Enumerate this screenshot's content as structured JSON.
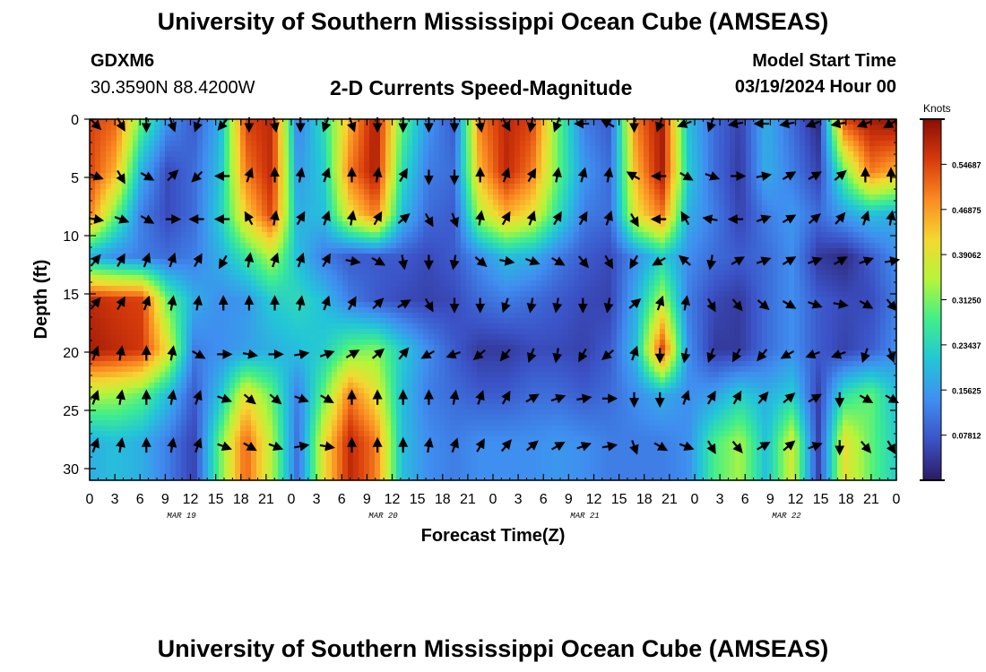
{
  "header": {
    "title": "University of Southern Mississippi Ocean Cube (AMSEAS)",
    "station": "GDXM6",
    "coords": "30.3590N  88.4200W",
    "plot_title": "2-D Currents Speed-Magnitude",
    "model_start_label": "Model Start Time",
    "model_start_value": "03/19/2024 Hour 00"
  },
  "footer": {
    "title": "University of Southern Mississippi Ocean Cube (AMSEAS)"
  },
  "colors": {
    "arrow": "#000000",
    "frame": "#000000",
    "colormap": [
      "#2b1b63",
      "#3b52c6",
      "#3f8ef0",
      "#23c5d8",
      "#3fee8c",
      "#b5f53a",
      "#f4d832",
      "#fb8a22",
      "#d63a0b",
      "#8a0e06"
    ]
  },
  "chart_data": {
    "type": "heatmap",
    "title": "2-D Currents Speed-Magnitude",
    "xlabel": "Forecast Time(Z)",
    "ylabel": "Depth (ft)",
    "units": "Knots",
    "x_hours_range": [
      0,
      96
    ],
    "x_ticks": [
      "0",
      "3",
      "6",
      "9",
      "12",
      "15",
      "18",
      "21",
      "0",
      "3",
      "6",
      "9",
      "12",
      "15",
      "18",
      "21",
      "0",
      "3",
      "6",
      "9",
      "12",
      "15",
      "18",
      "21",
      "0",
      "3",
      "6",
      "9",
      "12",
      "15",
      "18",
      "21",
      "0"
    ],
    "date_labels": [
      "MAR 19",
      "MAR 20",
      "MAR 21",
      "MAR 22"
    ],
    "ylim": [
      0,
      31
    ],
    "y_ticks": [
      "0",
      "5",
      "10",
      "15",
      "20",
      "25",
      "30"
    ],
    "colorbar_ticks": [
      "0.54687",
      "0.46875",
      "0.39062",
      "0.31250",
      "0.23437",
      "0.15625",
      "0.07812"
    ],
    "speed_range": [
      0,
      0.625
    ],
    "depths_ft": [
      0,
      4.5,
      8.2,
      11.8,
      15.5,
      19.8,
      23.6,
      27.7
    ],
    "speed_grid": [
      [
        0.55,
        0.52,
        0.3,
        0.15,
        0.08,
        0.18,
        0.55,
        0.58,
        0.12,
        0.25,
        0.45,
        0.6,
        0.3,
        0.15,
        0.08,
        0.5,
        0.58,
        0.55,
        0.3,
        0.12,
        0.08,
        0.5,
        0.6,
        0.2,
        0.1,
        0.05,
        0.18,
        0.1,
        0.02,
        0.55,
        0.6,
        0.62
      ],
      [
        0.55,
        0.45,
        0.18,
        0.06,
        0.1,
        0.2,
        0.5,
        0.58,
        0.15,
        0.22,
        0.5,
        0.6,
        0.25,
        0.12,
        0.1,
        0.45,
        0.58,
        0.5,
        0.3,
        0.15,
        0.1,
        0.45,
        0.6,
        0.22,
        0.1,
        0.04,
        0.18,
        0.12,
        0.05,
        0.3,
        0.5,
        0.45
      ],
      [
        0.5,
        0.3,
        0.12,
        0.06,
        0.1,
        0.22,
        0.42,
        0.55,
        0.18,
        0.2,
        0.4,
        0.5,
        0.2,
        0.1,
        0.08,
        0.35,
        0.45,
        0.4,
        0.25,
        0.12,
        0.1,
        0.4,
        0.5,
        0.18,
        0.12,
        0.05,
        0.12,
        0.15,
        0.1,
        0.16,
        0.2,
        0.18
      ],
      [
        0.18,
        0.14,
        0.12,
        0.1,
        0.12,
        0.18,
        0.26,
        0.35,
        0.2,
        0.12,
        0.08,
        0.08,
        0.08,
        0.06,
        0.08,
        0.14,
        0.2,
        0.18,
        0.12,
        0.08,
        0.06,
        0.14,
        0.22,
        0.14,
        0.1,
        0.08,
        0.1,
        0.14,
        0.04,
        0.02,
        0.08,
        0.14
      ],
      [
        0.58,
        0.56,
        0.55,
        0.3,
        0.18,
        0.14,
        0.15,
        0.22,
        0.24,
        0.2,
        0.12,
        0.08,
        0.06,
        0.05,
        0.06,
        0.1,
        0.12,
        0.1,
        0.08,
        0.06,
        0.05,
        0.18,
        0.35,
        0.12,
        0.06,
        0.04,
        0.1,
        0.14,
        0.08,
        0.06,
        0.06,
        0.12
      ],
      [
        0.6,
        0.58,
        0.56,
        0.4,
        0.12,
        0.14,
        0.16,
        0.18,
        0.2,
        0.22,
        0.3,
        0.32,
        0.22,
        0.14,
        0.08,
        0.04,
        0.04,
        0.06,
        0.06,
        0.05,
        0.08,
        0.2,
        0.55,
        0.14,
        0.04,
        0.04,
        0.1,
        0.14,
        0.08,
        0.05,
        0.08,
        0.14
      ],
      [
        0.35,
        0.34,
        0.3,
        0.2,
        0.08,
        0.2,
        0.4,
        0.3,
        0.12,
        0.3,
        0.5,
        0.4,
        0.2,
        0.12,
        0.1,
        0.08,
        0.08,
        0.1,
        0.1,
        0.08,
        0.1,
        0.14,
        0.18,
        0.14,
        0.16,
        0.22,
        0.18,
        0.22,
        0.05,
        0.25,
        0.3,
        0.2
      ],
      [
        0.18,
        0.2,
        0.18,
        0.12,
        0.05,
        0.3,
        0.52,
        0.35,
        0.1,
        0.4,
        0.58,
        0.5,
        0.2,
        0.14,
        0.12,
        0.14,
        0.14,
        0.14,
        0.15,
        0.14,
        0.12,
        0.12,
        0.12,
        0.14,
        0.28,
        0.34,
        0.2,
        0.38,
        0.05,
        0.4,
        0.3,
        0.22
      ]
    ],
    "direction_deg": [
      [
        135,
        150,
        180,
        160,
        200,
        220,
        180,
        170,
        180,
        200,
        160,
        180,
        180,
        180,
        180,
        170,
        150,
        190,
        200,
        270,
        300,
        180,
        200,
        250,
        200,
        260,
        270,
        260,
        250,
        260,
        250,
        240
      ],
      [
        110,
        150,
        120,
        45,
        225,
        270,
        20,
        0,
        10,
        20,
        0,
        10,
        30,
        180,
        180,
        0,
        20,
        30,
        10,
        15,
        10,
        300,
        270,
        120,
        110,
        90,
        80,
        60,
        60,
        50,
        0,
        0
      ],
      [
        100,
        110,
        120,
        90,
        270,
        270,
        330,
        10,
        30,
        20,
        10,
        30,
        50,
        150,
        160,
        10,
        30,
        20,
        30,
        30,
        20,
        150,
        270,
        330,
        280,
        270,
        70,
        60,
        50,
        40,
        20,
        10
      ],
      [
        40,
        30,
        20,
        20,
        30,
        210,
        10,
        20,
        20,
        30,
        100,
        120,
        170,
        180,
        190,
        130,
        100,
        110,
        120,
        140,
        150,
        210,
        240,
        310,
        190,
        60,
        70,
        60,
        70,
        60,
        70,
        80
      ],
      [
        40,
        30,
        20,
        10,
        10,
        0,
        0,
        0,
        10,
        20,
        30,
        45,
        60,
        150,
        180,
        180,
        200,
        190,
        190,
        180,
        190,
        50,
        20,
        10,
        150,
        140,
        130,
        120,
        110,
        100,
        120,
        140
      ],
      [
        20,
        10,
        0,
        10,
        120,
        90,
        100,
        90,
        80,
        70,
        60,
        50,
        40,
        240,
        250,
        230,
        220,
        200,
        190,
        210,
        230,
        20,
        180,
        190,
        200,
        210,
        220,
        240,
        250,
        250,
        200,
        160
      ],
      [
        20,
        10,
        0,
        10,
        20,
        110,
        130,
        130,
        110,
        120,
        0,
        0,
        0,
        0,
        10,
        20,
        30,
        60,
        70,
        80,
        90,
        180,
        180,
        20,
        30,
        30,
        40,
        50,
        60,
        180,
        120,
        120
      ],
      [
        20,
        10,
        0,
        10,
        20,
        110,
        120,
        110,
        80,
        100,
        0,
        0,
        0,
        10,
        20,
        30,
        40,
        50,
        60,
        70,
        80,
        160,
        120,
        110,
        150,
        140,
        60,
        50,
        70,
        180,
        140,
        150
      ]
    ]
  }
}
